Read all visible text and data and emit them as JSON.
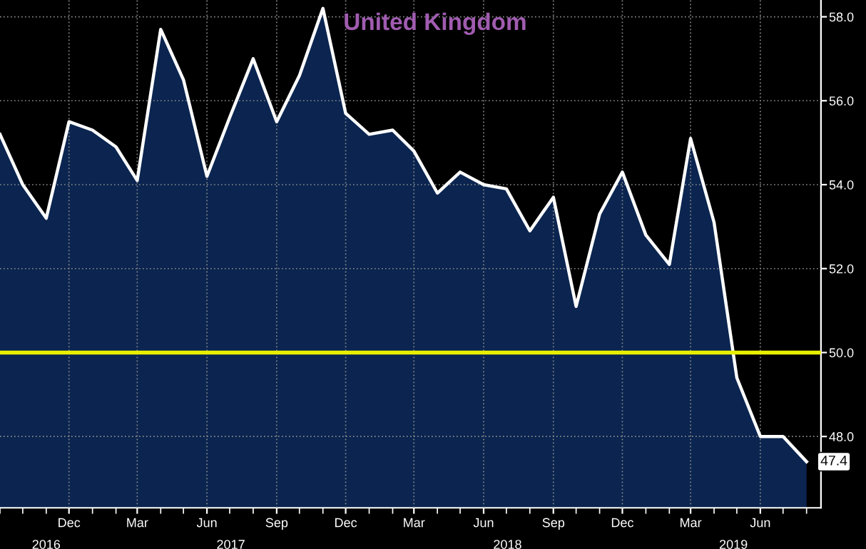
{
  "chart_data": {
    "type": "area",
    "title": "United Kingdom",
    "x": [
      "2016-09",
      "2016-10",
      "2016-11",
      "2016-12",
      "2017-01",
      "2017-02",
      "2017-03",
      "2017-04",
      "2017-05",
      "2017-06",
      "2017-07",
      "2017-08",
      "2017-09",
      "2017-10",
      "2017-11",
      "2017-12",
      "2018-01",
      "2018-02",
      "2018-03",
      "2018-04",
      "2018-05",
      "2018-06",
      "2018-07",
      "2018-08",
      "2018-09",
      "2018-10",
      "2018-11",
      "2018-12",
      "2019-01",
      "2019-02",
      "2019-03",
      "2019-04",
      "2019-05",
      "2019-06",
      "2019-07",
      "2019-08"
    ],
    "series": [
      {
        "color": "#ffffff",
        "values": [
          55.2,
          54.0,
          53.2,
          55.5,
          55.3,
          54.9,
          54.1,
          57.7,
          56.5,
          54.2,
          55.6,
          57.0,
          55.5,
          56.6,
          58.2,
          55.7,
          55.2,
          55.3,
          54.8,
          53.8,
          54.3,
          54.0,
          53.9,
          52.9,
          53.7,
          51.1,
          53.3,
          54.3,
          52.8,
          52.1,
          55.1,
          53.1,
          49.4,
          48.0,
          48.0,
          47.4
        ]
      }
    ],
    "ylim": [
      46.3,
      58.4
    ],
    "yticks": [
      {
        "value": 48,
        "label": "48.0"
      },
      {
        "value": 50,
        "label": "50.0"
      },
      {
        "value": 52,
        "label": "52.0"
      },
      {
        "value": 54,
        "label": "54.0"
      },
      {
        "value": 56,
        "label": "56.0"
      },
      {
        "value": 58,
        "label": "58.0"
      }
    ],
    "xlim": [
      "2016-09-01",
      "2019-08-20"
    ],
    "xticks": [
      {
        "value": "2016-12-01",
        "label": "Dec"
      },
      {
        "value": "2017-03-01",
        "label": "Mar"
      },
      {
        "value": "2017-06-01",
        "label": "Jun"
      },
      {
        "value": "2017-09-01",
        "label": "Sep"
      },
      {
        "value": "2017-12-01",
        "label": "Dec"
      },
      {
        "value": "2018-03-01",
        "label": "Mar"
      },
      {
        "value": "2018-06-01",
        "label": "Jun"
      },
      {
        "value": "2018-09-01",
        "label": "Sep"
      },
      {
        "value": "2018-12-01",
        "label": "Dec"
      },
      {
        "value": "2019-03-01",
        "label": "Mar"
      },
      {
        "value": "2019-06-01",
        "label": "Jun"
      }
    ],
    "ref_lines": [
      {
        "axis": "y",
        "value": 50,
        "color": "#e8f000"
      }
    ],
    "annotations": [
      {
        "text": "47.4",
        "x": "2019-08",
        "y": 47.4
      },
      "2016",
      "2017",
      "2018",
      "2019"
    ],
    "grid": true
  }
}
